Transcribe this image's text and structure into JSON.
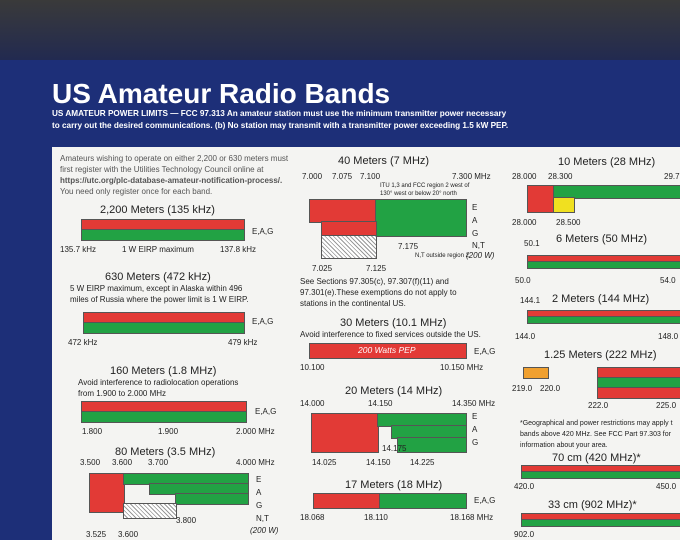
{
  "header": {
    "title": "US Amateur Radio Bands",
    "subtitle_lines": [
      "US AMATEUR POWER LIMITS — FCC 97.313  An amateur station must use the minimum transmitter power necessary",
      "to carry out the desired communications.  (b) No station may transmit with a transmitter power exceeding 1.5 kW PEP."
    ]
  },
  "intro": [
    "Amateurs wishing to operate on either 2,200 or 630 meters must",
    "first register with the Utilities Technology Council online at",
    "https://utc.org/plc-database-amateur-notification-process/.",
    "You need only register once for each band."
  ],
  "bands": [
    {
      "title": "2,200 Meters (135 kHz)",
      "labels": [
        "135.7 kHz",
        "1 W EIRP maximum",
        "137.8 kHz"
      ],
      "modes": [
        "E,A,G"
      ]
    },
    {
      "title": "630 Meters (472 kHz)",
      "notes": [
        "5 W EIRP maximum, except in Alaska within 496",
        "miles of Russia where the power limit is 1 W EIRP."
      ],
      "labels": [
        "472 kHz",
        "479 kHz"
      ],
      "modes": [
        "E,A,G"
      ]
    },
    {
      "title": "160 Meters (1.8 MHz)",
      "notes": [
        "Avoid interference to radiolocation operations",
        "from 1.900 to 2.000 MHz"
      ],
      "labels": [
        "1.800",
        "1.900",
        "2.000 MHz"
      ],
      "modes": [
        "E,A,G"
      ]
    },
    {
      "title": "80 Meters (3.5 MHz)",
      "labels": [
        "3.500",
        "3.600",
        "3.700",
        "4.000 MHz",
        "3.800",
        "3.525",
        "3.600"
      ],
      "modes": [
        "E",
        "A",
        "G",
        "N,T",
        "(200 W)"
      ]
    },
    {
      "title": "40 Meters (7 MHz)",
      "labels": [
        "7.000",
        "7.075",
        "7.100",
        "7.300 MHz",
        "7.175",
        "7.025",
        "7.125"
      ],
      "small_notes": [
        "ITU 1,3 and FCC region 2 west of",
        "130° west or below 20° north",
        "N,T outside region 2"
      ],
      "modes": [
        "E",
        "A",
        "G",
        "N,T",
        "(200 W)"
      ],
      "notes": [
        "See Sections 97.305(c), 97.307(f)(11) and",
        "97.301(e).These exemptions do not apply to",
        "stations in the continental US."
      ]
    },
    {
      "title": "30 Meters (10.1 MHz)",
      "notes": [
        "Avoid interference to fixed services outside the US."
      ],
      "bar_text": "200 Watts PEP",
      "labels": [
        "10.100",
        "10.150 MHz"
      ],
      "modes": [
        "E,A,G"
      ]
    },
    {
      "title": "20 Meters (14 MHz)",
      "labels": [
        "14.000",
        "14.150",
        "14.350 MHz",
        "14.175",
        "14.025",
        "14.150",
        "14.225"
      ],
      "modes": [
        "E",
        "A",
        "G"
      ]
    },
    {
      "title": "17 Meters (18 MHz)",
      "labels": [
        "18.068",
        "18.110",
        "18.168 MHz"
      ],
      "modes": [
        "E,A,G"
      ]
    },
    {
      "title": "10 Meters (28 MHz)",
      "labels": [
        "28.000",
        "28.300",
        "29.7",
        "28.000",
        "28.500"
      ]
    },
    {
      "title": "6 Meters (50 MHz)",
      "labels": [
        "50.1",
        "50.0",
        "54.0"
      ]
    },
    {
      "title": "2 Meters (144 MHz)",
      "labels": [
        "144.1",
        "144.0",
        "148.0"
      ]
    },
    {
      "title": "1.25 Meters (222 MHz)",
      "labels": [
        "219.0",
        "220.0",
        "222.0",
        "225.0"
      ]
    },
    {
      "title": "70 cm (420 MHz)*",
      "labels": [
        "420.0",
        "450.0"
      ]
    },
    {
      "title": "33 cm (902 MHz)*",
      "labels": [
        "902.0"
      ]
    }
  ],
  "uhf_note": [
    "*Geographical and power restrictions may apply t",
    "bands above 420 MHz. See FCC Part 97.303 for",
    "information about your area."
  ]
}
